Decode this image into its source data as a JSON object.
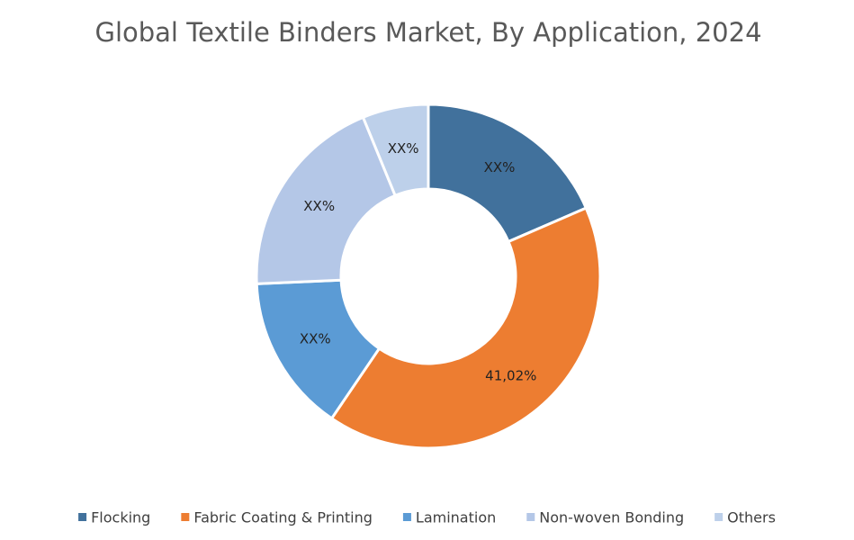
{
  "chart_data": {
    "type": "donut",
    "title": "Global Textile Binders Market, By Application, 2024",
    "categories": [
      "Flocking",
      "Fabric Coating & Printing",
      "Lamination",
      "Non-woven Bonding",
      "Others"
    ],
    "values": [
      18.5,
      41.02,
      14.8,
      19.5,
      6.2
    ],
    "value_labels": [
      "XX%",
      "41,02%",
      "XX%",
      "XX%",
      "XX%"
    ],
    "colors": [
      "#41719c",
      "#ed7d31",
      "#5b9bd5",
      "#b4c7e7",
      "#bdd0ea"
    ],
    "legend": "bottom"
  }
}
